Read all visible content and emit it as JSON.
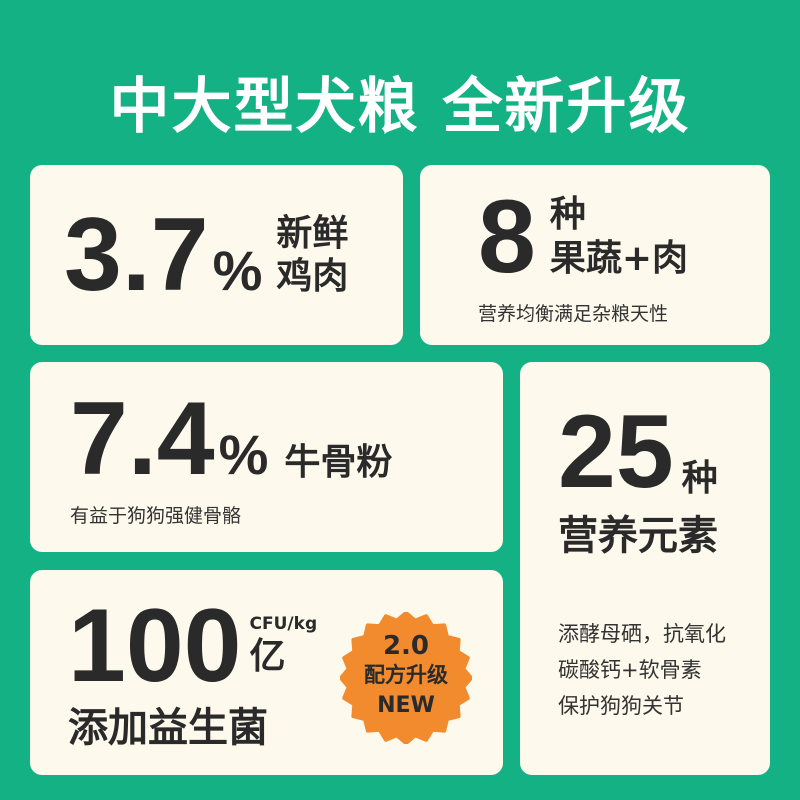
{
  "title": "中大型犬粮  全新升级",
  "colors": {
    "background": "#13b183",
    "card": "#fdf9ec",
    "text": "#2a2a2a",
    "badge": "#f28a2e"
  },
  "cards": {
    "chicken": {
      "value": "3.7",
      "unit": "%",
      "label1": "新鲜",
      "label2": "鸡肉"
    },
    "fruits": {
      "value": "8",
      "label1": "种",
      "label2": "果蔬+肉",
      "sub": "营养均衡满足杂粮天性"
    },
    "bone": {
      "value": "7.4",
      "unit": "%",
      "label": "牛骨粉",
      "sub": "有益于狗狗强健骨骼"
    },
    "nutrients": {
      "value": "25",
      "unit": "种",
      "label": "营养元素",
      "desc": [
        "添酵母硒，抗氧化",
        "碳酸钙+软骨素",
        "保护狗狗关节"
      ]
    },
    "probiotic": {
      "value": "100",
      "unit": "CFU/kg",
      "unit2": "亿",
      "label": "添加益生菌"
    }
  },
  "badge": {
    "icon": "starburst-badge",
    "line1": "2.0",
    "line2": "配方升级",
    "line3": "NEW"
  }
}
